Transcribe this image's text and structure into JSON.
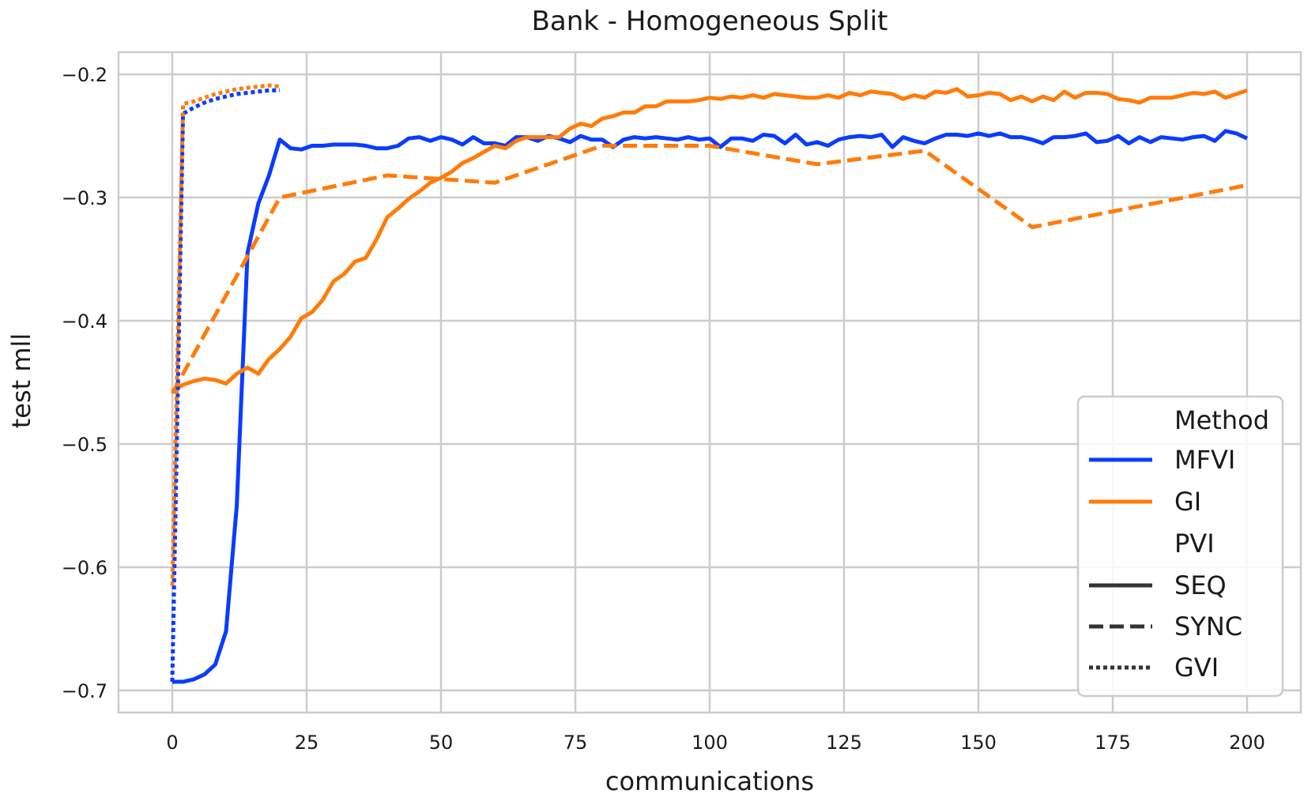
{
  "chart_data": {
    "type": "line",
    "title": "Bank - Homogeneous Split",
    "xlabel": "communications",
    "ylabel": "test mll",
    "xlim": [
      -10,
      210
    ],
    "ylim": [
      -0.718,
      -0.182
    ],
    "x_ticks": [
      0,
      25,
      50,
      75,
      100,
      125,
      150,
      175,
      200
    ],
    "x_tick_labels": [
      "0",
      "25",
      "50",
      "75",
      "100",
      "125",
      "150",
      "175",
      "200"
    ],
    "y_ticks": [
      -0.2,
      -0.3,
      -0.4,
      -0.5,
      -0.6,
      -0.7
    ],
    "y_tick_labels": [
      "−0.2",
      "−0.3",
      "−0.4",
      "−0.5",
      "−0.6",
      "−0.7"
    ],
    "grid": true,
    "legend_position": "bottom-right",
    "legend": {
      "hue_title": "Method",
      "hue_entries": [
        {
          "name": "MFVI",
          "color": "#0a3cff"
        },
        {
          "name": "GI",
          "color": "#ff7c0a"
        }
      ],
      "style_title": "PVI",
      "style_entries": [
        {
          "name": "SEQ",
          "dash": "solid"
        },
        {
          "name": "SYNC",
          "dash": "dashed"
        },
        {
          "name": "GVI",
          "dash": "dotted"
        }
      ]
    },
    "series": [
      {
        "method": "MFVI",
        "pvi": "SEQ",
        "color": "#0a3cff",
        "x": [
          0,
          2,
          4,
          6,
          8,
          10,
          12,
          14,
          16,
          18,
          20,
          22,
          24,
          26,
          28,
          30,
          32,
          34,
          36,
          38,
          40,
          42,
          44,
          46,
          48,
          50,
          52,
          54,
          56,
          58,
          60,
          62,
          64,
          66,
          68,
          70,
          72,
          74,
          76,
          78,
          80,
          82,
          84,
          86,
          88,
          90,
          92,
          94,
          96,
          98,
          100,
          102,
          104,
          106,
          108,
          110,
          112,
          114,
          116,
          118,
          120,
          122,
          124,
          126,
          128,
          130,
          132,
          134,
          136,
          138,
          140,
          142,
          144,
          146,
          148,
          150,
          152,
          154,
          156,
          158,
          160,
          162,
          164,
          166,
          168,
          170,
          172,
          174,
          176,
          178,
          180,
          182,
          184,
          186,
          188,
          190,
          192,
          194,
          196,
          198,
          200
        ],
        "y": [
          -0.693,
          -0.693,
          -0.691,
          -0.687,
          -0.679,
          -0.652,
          -0.55,
          -0.345,
          -0.305,
          -0.282,
          -0.253,
          -0.26,
          -0.261,
          -0.258,
          -0.258,
          -0.257,
          -0.257,
          -0.257,
          -0.258,
          -0.26,
          -0.26,
          -0.258,
          -0.252,
          -0.251,
          -0.254,
          -0.251,
          -0.253,
          -0.257,
          -0.251,
          -0.256,
          -0.256,
          -0.258,
          -0.251,
          -0.251,
          -0.254,
          -0.25,
          -0.252,
          -0.255,
          -0.25,
          -0.253,
          -0.253,
          -0.259,
          -0.253,
          -0.251,
          -0.252,
          -0.251,
          -0.252,
          -0.253,
          -0.251,
          -0.253,
          -0.252,
          -0.259,
          -0.252,
          -0.252,
          -0.254,
          -0.249,
          -0.25,
          -0.256,
          -0.249,
          -0.257,
          -0.255,
          -0.258,
          -0.253,
          -0.251,
          -0.25,
          -0.251,
          -0.249,
          -0.259,
          -0.251,
          -0.254,
          -0.256,
          -0.252,
          -0.249,
          -0.249,
          -0.25,
          -0.248,
          -0.25,
          -0.248,
          -0.251,
          -0.251,
          -0.253,
          -0.256,
          -0.251,
          -0.251,
          -0.25,
          -0.248,
          -0.255,
          -0.254,
          -0.25,
          -0.256,
          -0.251,
          -0.255,
          -0.251,
          -0.252,
          -0.253,
          -0.251,
          -0.25,
          -0.254,
          -0.246,
          -0.248,
          -0.252
        ]
      },
      {
        "method": "GI",
        "pvi": "SEQ",
        "color": "#ff7c0a",
        "x": [
          0,
          2,
          4,
          6,
          8,
          10,
          12,
          14,
          16,
          18,
          20,
          22,
          24,
          26,
          28,
          30,
          32,
          34,
          36,
          38,
          40,
          42,
          44,
          46,
          48,
          50,
          52,
          54,
          56,
          58,
          60,
          62,
          64,
          66,
          68,
          70,
          72,
          74,
          76,
          78,
          80,
          82,
          84,
          86,
          88,
          90,
          92,
          94,
          96,
          98,
          100,
          102,
          104,
          106,
          108,
          110,
          112,
          114,
          116,
          118,
          120,
          122,
          124,
          126,
          128,
          130,
          132,
          134,
          136,
          138,
          140,
          142,
          144,
          146,
          148,
          150,
          152,
          154,
          156,
          158,
          160,
          162,
          164,
          166,
          168,
          170,
          172,
          174,
          176,
          178,
          180,
          182,
          184,
          186,
          188,
          190,
          192,
          194,
          196,
          198,
          200
        ],
        "y": [
          -0.457,
          -0.452,
          -0.449,
          -0.447,
          -0.448,
          -0.451,
          -0.443,
          -0.438,
          -0.443,
          -0.431,
          -0.423,
          -0.413,
          -0.398,
          -0.393,
          -0.383,
          -0.368,
          -0.362,
          -0.352,
          -0.349,
          -0.334,
          -0.316,
          -0.309,
          -0.301,
          -0.295,
          -0.288,
          -0.284,
          -0.279,
          -0.272,
          -0.268,
          -0.263,
          -0.258,
          -0.26,
          -0.254,
          -0.251,
          -0.251,
          -0.251,
          -0.251,
          -0.244,
          -0.24,
          -0.242,
          -0.236,
          -0.234,
          -0.231,
          -0.231,
          -0.226,
          -0.226,
          -0.222,
          -0.222,
          -0.222,
          -0.221,
          -0.219,
          -0.22,
          -0.218,
          -0.219,
          -0.217,
          -0.219,
          -0.216,
          -0.217,
          -0.218,
          -0.219,
          -0.219,
          -0.217,
          -0.219,
          -0.215,
          -0.217,
          -0.214,
          -0.215,
          -0.216,
          -0.22,
          -0.217,
          -0.219,
          -0.214,
          -0.215,
          -0.212,
          -0.218,
          -0.217,
          -0.215,
          -0.216,
          -0.221,
          -0.218,
          -0.222,
          -0.218,
          -0.221,
          -0.214,
          -0.219,
          -0.215,
          -0.215,
          -0.216,
          -0.22,
          -0.221,
          -0.223,
          -0.219,
          -0.219,
          -0.219,
          -0.217,
          -0.215,
          -0.216,
          -0.214,
          -0.219,
          -0.216,
          -0.213
        ]
      },
      {
        "method": "GI",
        "pvi": "SYNC",
        "color": "#ff7c0a",
        "x": [
          0,
          20,
          40,
          60,
          80,
          100,
          120,
          140,
          160,
          200
        ],
        "y": [
          -0.459,
          -0.3,
          -0.282,
          -0.288,
          -0.258,
          -0.258,
          -0.273,
          -0.262,
          -0.324,
          -0.29
        ]
      },
      {
        "method": "MFVI",
        "pvi": "GVI",
        "color": "#0a3cff",
        "x": [
          0,
          2,
          4,
          6,
          8,
          10,
          12,
          14,
          16,
          18,
          20
        ],
        "y": [
          -0.693,
          -0.232,
          -0.227,
          -0.223,
          -0.22,
          -0.218,
          -0.216,
          -0.215,
          -0.214,
          -0.213,
          -0.213
        ]
      },
      {
        "method": "GI",
        "pvi": "GVI",
        "color": "#ff7c0a",
        "x": [
          0,
          2,
          4,
          6,
          8,
          10,
          12,
          14,
          16,
          18,
          20
        ],
        "y": [
          -0.615,
          -0.224,
          -0.222,
          -0.219,
          -0.216,
          -0.214,
          -0.212,
          -0.211,
          -0.21,
          -0.209,
          -0.21
        ]
      }
    ]
  }
}
